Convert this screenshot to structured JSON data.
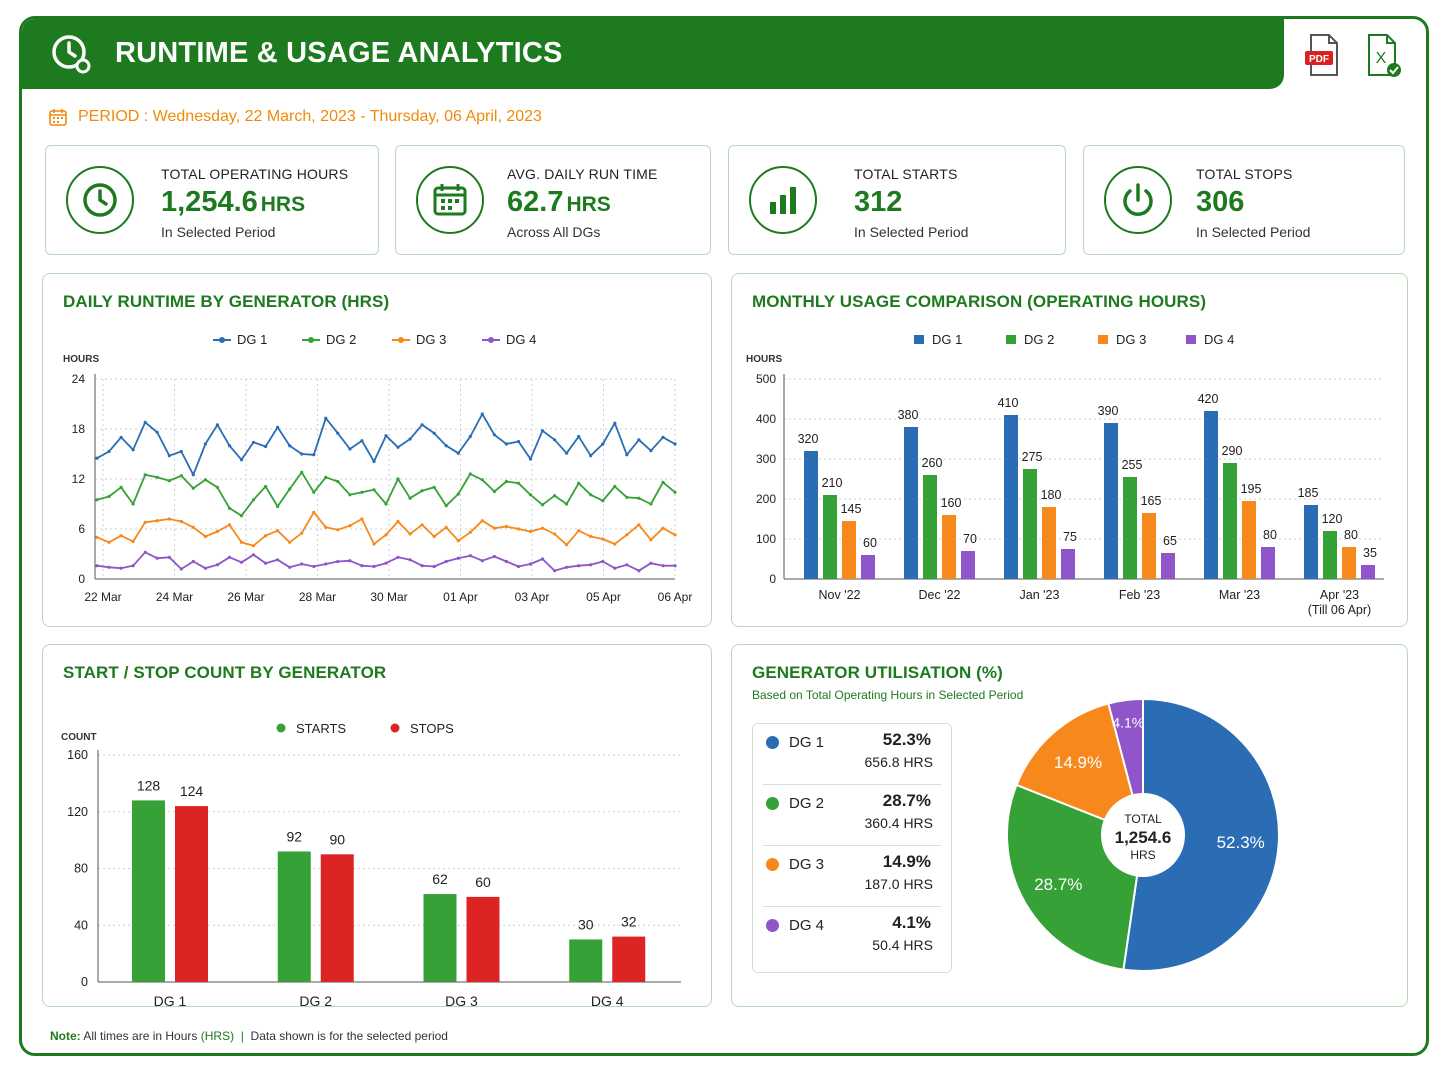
{
  "header": {
    "title": "RUNTIME & USAGE ANALYTICS",
    "pdf_label": "PDF",
    "excel_label": "X"
  },
  "period": {
    "label": "PERIOD : Wednesday, 22 March, 2023 - Thursday, 06 April, 2023"
  },
  "kpis": [
    {
      "label": "TOTAL OPERATING HOURS",
      "value": "1,254.6",
      "unit": "HRS",
      "sub": "In Selected Period",
      "icon": "clock-icon"
    },
    {
      "label": "AVG. DAILY RUN TIME",
      "value": "62.7",
      "unit": "HRS",
      "sub": "Across All DGs",
      "icon": "calendar-icon"
    },
    {
      "label": "TOTAL STARTS",
      "value": "312",
      "unit": "",
      "sub": "In Selected Period",
      "icon": "bar-chart-icon"
    },
    {
      "label": "TOTAL STOPS",
      "value": "306",
      "unit": "",
      "sub": "In Selected Period",
      "icon": "power-icon"
    }
  ],
  "colors": {
    "dg1": "#2a6db5",
    "dg2": "#36a136",
    "dg3": "#f7891c",
    "dg4": "#8f55c9",
    "starts": "#36a136",
    "stops": "#dd2424",
    "brand": "#1e7a1e",
    "period": "#f08a0c"
  },
  "panels": {
    "daily_runtime": {
      "title": "DAILY RUNTIME BY GENERATOR (HRS)"
    },
    "monthly_usage": {
      "title": "MONTHLY USAGE COMPARISON (OPERATING HOURS)"
    },
    "start_stop": {
      "title": "START / STOP COUNT BY GENERATOR"
    },
    "utilisation": {
      "title": "GENERATOR UTILISATION (%)",
      "subtitle": "Based on Total Operating Hours in Selected Period"
    }
  },
  "chart_data": [
    {
      "type": "line",
      "title": "DAILY RUNTIME BY GENERATOR (HRS)",
      "ylabel": "HOURS",
      "ylim": [
        0,
        24
      ],
      "yticks": [
        "0",
        "6",
        "12",
        "18",
        "24"
      ],
      "xticks": [
        "22 Mar",
        "24 Mar",
        "26 Mar",
        "28 Mar",
        "30 Mar",
        "01 Apr",
        "03 Apr",
        "05 Apr",
        "06 Apr"
      ],
      "grid": true,
      "legend": "top-center",
      "series": [
        {
          "name": "DG 1",
          "values": [
            14.5,
            15.3,
            17.0,
            15.5,
            18.8,
            17.6,
            14.8,
            15.3,
            12.5,
            16.2,
            18.5,
            16.0,
            14.3,
            16.4,
            15.9,
            18.2,
            16.0,
            15.0,
            14.9,
            19.3,
            17.5,
            15.6,
            16.6,
            14.1,
            17.2,
            15.8,
            16.8,
            18.5,
            17.5,
            16.0,
            15.1,
            17.1,
            19.8,
            17.3,
            16.2,
            16.5,
            14.4,
            17.8,
            16.7,
            15.1,
            17.1,
            14.8,
            16.2,
            18.7,
            14.9,
            16.7,
            15.4,
            17.0,
            16.2
          ]
        },
        {
          "name": "DG 2",
          "values": [
            9.5,
            9.9,
            11.0,
            9.0,
            12.5,
            12.2,
            11.8,
            12.4,
            10.9,
            11.9,
            11.0,
            8.5,
            7.6,
            9.5,
            11.1,
            8.7,
            10.8,
            12.8,
            10.4,
            12.2,
            11.7,
            10.1,
            10.4,
            10.7,
            9.0,
            12.0,
            9.7,
            10.6,
            11.0,
            8.8,
            10.2,
            12.6,
            11.9,
            10.5,
            11.7,
            11.5,
            10.1,
            8.9,
            10.0,
            9.0,
            11.5,
            10.1,
            9.4,
            11.1,
            9.8,
            9.7,
            9.0,
            11.6,
            10.4
          ]
        },
        {
          "name": "DG 3",
          "values": [
            5.0,
            4.4,
            5.2,
            4.5,
            6.8,
            7.0,
            7.2,
            6.9,
            6.2,
            5.1,
            5.7,
            6.5,
            4.4,
            4.0,
            5.2,
            5.8,
            4.4,
            5.5,
            8.0,
            6.2,
            5.9,
            6.4,
            7.2,
            4.2,
            5.3,
            6.9,
            5.4,
            6.5,
            5.1,
            6.2,
            4.6,
            5.6,
            7.0,
            6.1,
            6.3,
            6.0,
            5.7,
            6.1,
            5.4,
            4.1,
            5.8,
            5.1,
            4.8,
            4.2,
            5.3,
            6.5,
            4.7,
            6.1,
            5.3
          ]
        },
        {
          "name": "DG 4",
          "values": [
            1.6,
            1.4,
            1.3,
            1.6,
            3.2,
            2.5,
            2.6,
            1.2,
            2.1,
            1.3,
            1.7,
            2.6,
            2.0,
            2.9,
            1.9,
            2.3,
            1.4,
            1.8,
            1.5,
            1.8,
            2.1,
            2.2,
            1.6,
            1.5,
            1.9,
            2.6,
            2.3,
            1.6,
            1.5,
            2.1,
            2.5,
            2.8,
            2.2,
            2.7,
            2.1,
            1.5,
            1.8,
            2.4,
            1.0,
            1.4,
            1.6,
            1.7,
            2.1,
            1.3,
            1.7,
            1.0,
            1.9,
            1.6,
            1.6
          ]
        }
      ]
    },
    {
      "type": "bar",
      "title": "MONTHLY USAGE COMPARISON (OPERATING HOURS)",
      "ylabel": "HOURS",
      "ylim": [
        0,
        500
      ],
      "yticks": [
        "0",
        "100",
        "200",
        "300",
        "400",
        "500"
      ],
      "categories": [
        "Nov '22",
        "Dec '22",
        "Jan '23",
        "Feb '23",
        "Mar '23",
        "Apr '23"
      ],
      "category_sublabels": [
        "",
        "",
        "",
        "",
        "",
        "(Till 06 Apr)"
      ],
      "grid": true,
      "legend": "top-center",
      "series": [
        {
          "name": "DG 1",
          "values": [
            320,
            380,
            410,
            390,
            420,
            185
          ]
        },
        {
          "name": "DG 2",
          "values": [
            210,
            260,
            275,
            255,
            290,
            120
          ]
        },
        {
          "name": "DG 3",
          "values": [
            145,
            160,
            180,
            165,
            195,
            80
          ]
        },
        {
          "name": "DG 4",
          "values": [
            60,
            70,
            75,
            65,
            80,
            35
          ]
        }
      ]
    },
    {
      "type": "bar",
      "title": "START / STOP COUNT BY GENERATOR",
      "ylabel": "COUNT",
      "ylim": [
        0,
        160
      ],
      "yticks": [
        "0",
        "40",
        "80",
        "120",
        "160"
      ],
      "categories": [
        "DG 1",
        "DG 2",
        "DG 3",
        "DG 4"
      ],
      "grid": true,
      "legend": "top-center",
      "series": [
        {
          "name": "STARTS",
          "values": [
            128,
            92,
            62,
            30
          ]
        },
        {
          "name": "STOPS",
          "values": [
            124,
            90,
            60,
            32
          ]
        }
      ]
    },
    {
      "type": "pie",
      "title": "GENERATOR UTILISATION (%)",
      "center_label": [
        "TOTAL",
        "1,254.6",
        "HRS"
      ],
      "slices": [
        {
          "name": "DG 1",
          "percent": 52.3,
          "label": "52.3%",
          "hours": "656.8 HRS"
        },
        {
          "name": "DG 2",
          "percent": 28.7,
          "label": "28.7%",
          "hours": "360.4 HRS"
        },
        {
          "name": "DG 3",
          "percent": 14.9,
          "label": "14.9%",
          "hours": "187.0 HRS"
        },
        {
          "name": "DG 4",
          "percent": 4.1,
          "label": "4.1%",
          "hours": "50.4 HRS"
        }
      ]
    }
  ],
  "footer": {
    "note_label": "Note:",
    "note_text": "All times are in Hours",
    "note_unit": "(HRS)",
    "note_sep": "|",
    "note_text2": "Data shown is for the selected period"
  }
}
